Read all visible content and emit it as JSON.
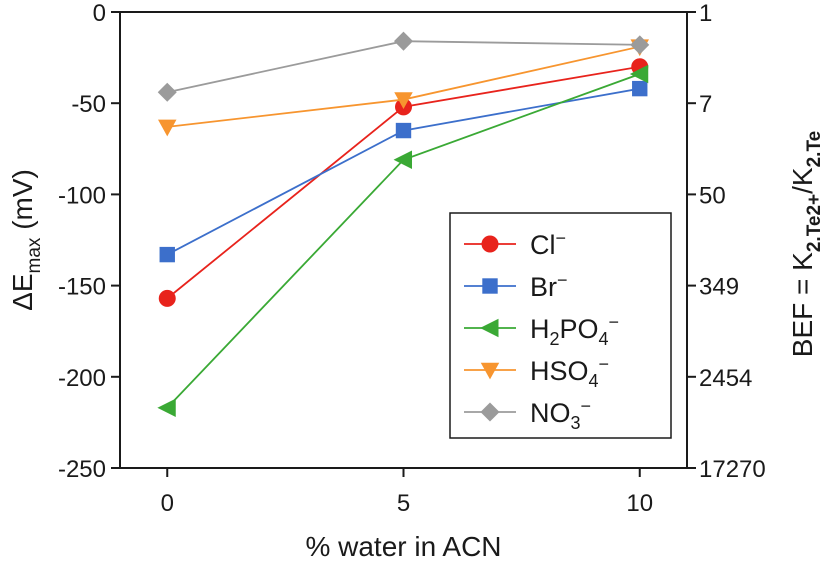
{
  "chart_data": {
    "type": "line",
    "x": [
      0,
      5,
      10
    ],
    "x_ticks": [
      "0",
      "5",
      "10"
    ],
    "xlabel": "% water in ACN",
    "ylabel": {
      "main": "ΔE",
      "sub": "max",
      "unit": " (mV)"
    },
    "ylim": [
      -250,
      0
    ],
    "y_ticks": [
      0,
      -50,
      -100,
      -150,
      -200,
      -250
    ],
    "y_tick_labels": [
      "0",
      "-50",
      "-100",
      "-150",
      "-200",
      "-250"
    ],
    "y2label": {
      "pre": "BEF = K",
      "sub1": "2.Te2+",
      "mid": "/K",
      "sub2": "2.Te"
    },
    "y2_tick_labels": [
      "1",
      "7",
      "50",
      "349",
      "2454",
      "17270"
    ],
    "legend_position": "lower-right",
    "series": [
      {
        "label_parts": [
          [
            "n",
            "Cl"
          ],
          [
            "sup",
            "−"
          ]
        ],
        "values": [
          -157,
          -52,
          -30
        ],
        "color": "#e8231c",
        "marker": "circle"
      },
      {
        "label_parts": [
          [
            "n",
            "Br"
          ],
          [
            "sup",
            "−"
          ]
        ],
        "values": [
          -133,
          -65,
          -42
        ],
        "color": "#3c6fcb",
        "marker": "square"
      },
      {
        "label_parts": [
          [
            "n",
            "H"
          ],
          [
            "sub",
            "2"
          ],
          [
            "n",
            "PO"
          ],
          [
            "sub",
            "4"
          ],
          [
            "sup",
            "−"
          ]
        ],
        "values": [
          -217,
          -81,
          -34
        ],
        "color": "#3aa935",
        "marker": "triangle-left"
      },
      {
        "label_parts": [
          [
            "n",
            "HSO"
          ],
          [
            "sub",
            "4"
          ],
          [
            "sup",
            "−"
          ]
        ],
        "values": [
          -63,
          -48,
          -19
        ],
        "color": "#f7952f",
        "marker": "triangle-down"
      },
      {
        "label_parts": [
          [
            "n",
            "NO"
          ],
          [
            "sub",
            "3"
          ],
          [
            "sup",
            "−"
          ]
        ],
        "values": [
          -44,
          -16,
          -18
        ],
        "color": "#9b9b9b",
        "marker": "diamond"
      }
    ]
  }
}
